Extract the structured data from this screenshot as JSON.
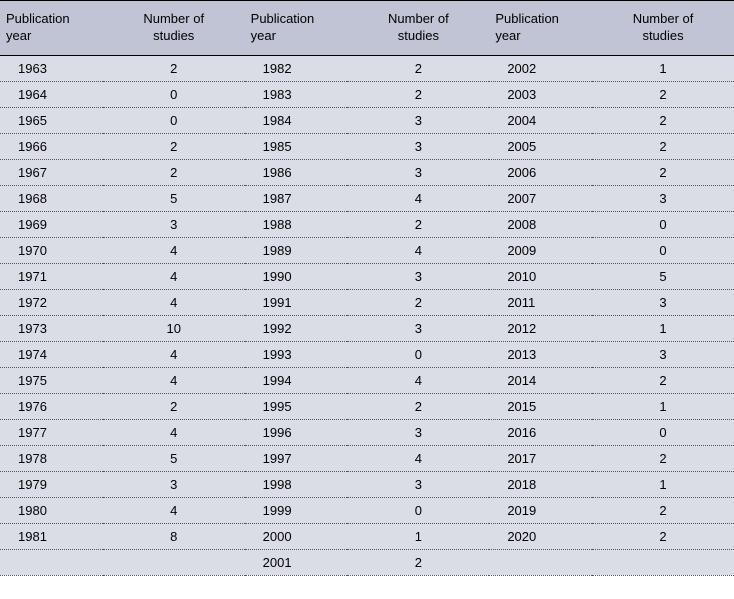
{
  "table": {
    "background_header": "#c0c4d4",
    "background_body": "#dadde6",
    "border_color": "#000000",
    "dotted_border_color": "#555555",
    "font_size_header": 13,
    "font_size_body": 13,
    "headers": {
      "col1_line1": "Publication",
      "col1_line2": "year",
      "col2_line1": "Number of",
      "col2_line2": "studies",
      "col3_line1": "Publication",
      "col3_line2": "year",
      "col4_line1": "Number of",
      "col4_line2": "studies",
      "col5_line1": "Publication",
      "col5_line2": "year",
      "col6_line1": "Number of",
      "col6_line2": "studies"
    },
    "rows": [
      {
        "y1": "1963",
        "n1": "2",
        "y2": "1982",
        "n2": "2",
        "y3": "2002",
        "n3": "1"
      },
      {
        "y1": "1964",
        "n1": "0",
        "y2": "1983",
        "n2": "2",
        "y3": "2003",
        "n3": "2"
      },
      {
        "y1": "1965",
        "n1": "0",
        "y2": "1984",
        "n2": "3",
        "y3": "2004",
        "n3": "2"
      },
      {
        "y1": "1966",
        "n1": "2",
        "y2": "1985",
        "n2": "3",
        "y3": "2005",
        "n3": "2"
      },
      {
        "y1": "1967",
        "n1": "2",
        "y2": "1986",
        "n2": "3",
        "y3": "2006",
        "n3": "2"
      },
      {
        "y1": "1968",
        "n1": "5",
        "y2": "1987",
        "n2": "4",
        "y3": "2007",
        "n3": "3"
      },
      {
        "y1": "1969",
        "n1": "3",
        "y2": "1988",
        "n2": "2",
        "y3": "2008",
        "n3": "0"
      },
      {
        "y1": "1970",
        "n1": "4",
        "y2": "1989",
        "n2": "4",
        "y3": "2009",
        "n3": "0"
      },
      {
        "y1": "1971",
        "n1": "4",
        "y2": "1990",
        "n2": "3",
        "y3": "2010",
        "n3": "5"
      },
      {
        "y1": "1972",
        "n1": "4",
        "y2": "1991",
        "n2": "2",
        "y3": "2011",
        "n3": "3"
      },
      {
        "y1": "1973",
        "n1": "10",
        "y2": "1992",
        "n2": "3",
        "y3": "2012",
        "n3": "1"
      },
      {
        "y1": "1974",
        "n1": "4",
        "y2": "1993",
        "n2": "0",
        "y3": "2013",
        "n3": "3"
      },
      {
        "y1": "1975",
        "n1": "4",
        "y2": "1994",
        "n2": "4",
        "y3": "2014",
        "n3": "2"
      },
      {
        "y1": "1976",
        "n1": "2",
        "y2": "1995",
        "n2": "2",
        "y3": "2015",
        "n3": "1"
      },
      {
        "y1": "1977",
        "n1": "4",
        "y2": "1996",
        "n2": "3",
        "y3": "2016",
        "n3": "0"
      },
      {
        "y1": "1978",
        "n1": "5",
        "y2": "1997",
        "n2": "4",
        "y3": "2017",
        "n3": "2"
      },
      {
        "y1": "1979",
        "n1": "3",
        "y2": "1998",
        "n2": "3",
        "y3": "2018",
        "n3": "1"
      },
      {
        "y1": "1980",
        "n1": "4",
        "y2": "1999",
        "n2": "0",
        "y3": "2019",
        "n3": "2"
      },
      {
        "y1": "1981",
        "n1": "8",
        "y2": "2000",
        "n2": "1",
        "y3": "2020",
        "n3": "2"
      },
      {
        "y1": "",
        "n1": "",
        "y2": "2001",
        "n2": "2",
        "y3": "",
        "n3": ""
      }
    ]
  }
}
